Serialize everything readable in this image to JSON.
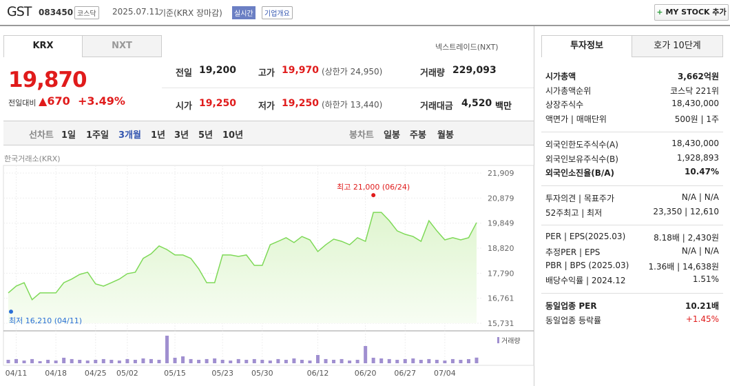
{
  "header": {
    "name": "GST",
    "code": "083450",
    "market": "코스닥",
    "date": "2025.07.11",
    "basis": "기준(KRX 장마감)",
    "badge": "실시간",
    "overview": "기업개요",
    "button": "MY STOCK 추가"
  },
  "tabs": [
    "KRX",
    "NXT"
  ],
  "nxt_link": "넥스트레이드(NXT)",
  "price": {
    "current": "19,870",
    "change_label": "전일대비",
    "change": "670",
    "rate": "+3.49%"
  },
  "quotes": [
    {
      "label": "전일",
      "value": "19,200"
    },
    {
      "label": "고가",
      "value": "19,970",
      "note": "(상한가 24,950)"
    },
    {
      "label": "거래량",
      "value": "229,093"
    },
    {
      "label": "시가",
      "value": "19,250"
    },
    {
      "label": "저가",
      "value": "19,250",
      "note": "(하한가 13,440)"
    },
    {
      "label": "거래대금",
      "value": "4,520",
      "note": "백만"
    }
  ],
  "period_tabs": [
    "선차트",
    "1일",
    "1주일",
    "3개월",
    "1년",
    "3년",
    "5년",
    "10년"
  ],
  "active_period": "3개월",
  "candle_tabs": [
    "봉차트",
    "일봉",
    "주봉",
    "월봉"
  ],
  "chart_data": {
    "type": "area",
    "source": "한국거래소(KRX)",
    "color": "#7ed957",
    "values": [
      16980,
      17260,
      17400,
      16700,
      16980,
      16980,
      16980,
      17400,
      17550,
      17740,
      17830,
      17350,
      17260,
      17400,
      17550,
      17770,
      17830,
      18400,
      18590,
      18910,
      18760,
      18540,
      18540,
      18400,
      17970,
      17400,
      17400,
      18540,
      18540,
      18480,
      18540,
      18110,
      18110,
      18960,
      19100,
      19250,
      19050,
      19300,
      19160,
      18680,
      18960,
      19190,
      19100,
      18960,
      19250,
      19100,
      20290,
      20290,
      19950,
      19530,
      19390,
      19300,
      19100,
      19950,
      19530,
      19160,
      19250,
      19160,
      19250,
      19870
    ],
    "ylim": [
      15731,
      21909
    ],
    "yticks": [
      {
        "value": 15731,
        "label": "15,731"
      },
      {
        "value": 16761,
        "label": "16,761"
      },
      {
        "value": 17790,
        "label": "17,790"
      },
      {
        "value": 18820,
        "label": "18,820"
      },
      {
        "value": 19849,
        "label": "19,849"
      },
      {
        "value": 20879,
        "label": "20,879"
      },
      {
        "value": 21909,
        "label": "21,909"
      }
    ],
    "xticks": [
      {
        "value": 1,
        "label": "04/11"
      },
      {
        "value": 6,
        "label": "04/18"
      },
      {
        "value": 11,
        "label": "04/25"
      },
      {
        "value": 15,
        "label": "05/02"
      },
      {
        "value": 21,
        "label": "05/15"
      },
      {
        "value": 27,
        "label": "05/23"
      },
      {
        "value": 32,
        "label": "05/30"
      },
      {
        "value": 39,
        "label": "06/12"
      },
      {
        "value": 45,
        "label": "06/20"
      },
      {
        "value": 50,
        "label": "06/27"
      },
      {
        "value": 55,
        "label": "07/04"
      }
    ],
    "high": {
      "index": 46,
      "value": 21000,
      "label": "최고 21,000 (06/24)"
    },
    "low": {
      "index": 0,
      "value": 16210,
      "label": "최저 16,210 (04/11)"
    },
    "volume_label": "거래량",
    "volume": [
      140000,
      170000,
      110000,
      170000,
      84000,
      140000,
      110000,
      224000,
      170000,
      140000,
      110000,
      140000,
      170000,
      140000,
      110000,
      170000,
      140000,
      196000,
      170000,
      140000,
      1120000,
      224000,
      280000,
      170000,
      140000,
      170000,
      196000,
      140000,
      110000,
      170000,
      140000,
      170000,
      140000,
      110000,
      170000,
      140000,
      196000,
      140000,
      110000,
      336000,
      170000,
      140000,
      170000,
      110000,
      140000,
      700000,
      224000,
      196000,
      170000,
      140000,
      170000,
      196000,
      140000,
      170000,
      140000,
      110000,
      170000,
      140000,
      168000,
      229093
    ]
  },
  "side_tabs": [
    "투자정보",
    "호가 10단계"
  ],
  "side": [
    [
      {
        "label": "시가총액",
        "value": "3,662억원",
        "bold": true
      },
      {
        "label": "시가총액순위",
        "value": "코스닥 221위"
      },
      {
        "label": "상장주식수",
        "value": "18,430,000"
      },
      {
        "label": "액면가 | 매매단위",
        "value": "500원 | 1주"
      }
    ],
    [
      {
        "label": "외국인한도주식수(A)",
        "value": "18,430,000"
      },
      {
        "label": "외국인보유주식수(B)",
        "value": "1,928,893"
      },
      {
        "label": "외국인소진율(B/A)",
        "value": "10.47%",
        "bold": true
      }
    ],
    [
      {
        "label": "투자의견 | 목표주가",
        "value": "N/A | N/A"
      },
      {
        "label": "52주최고 | 최저",
        "value": "23,350 | 12,610"
      }
    ],
    [
      {
        "label": "PER | EPS(2025.03)",
        "value": "8.18배 | 2,430원"
      },
      {
        "label": "추정PER | EPS",
        "value": "N/A | N/A"
      },
      {
        "label": "PBR | BPS (2025.03)",
        "value": "1.36배 | 14,638원"
      },
      {
        "label": "배당수익률 | 2024.12",
        "value": "1.51%"
      }
    ],
    [
      {
        "label": "동일업종 PER",
        "value": "10.21배",
        "bold": true
      },
      {
        "label": "동일업종 등락률",
        "value": "+1.45%",
        "red": true
      }
    ]
  ]
}
